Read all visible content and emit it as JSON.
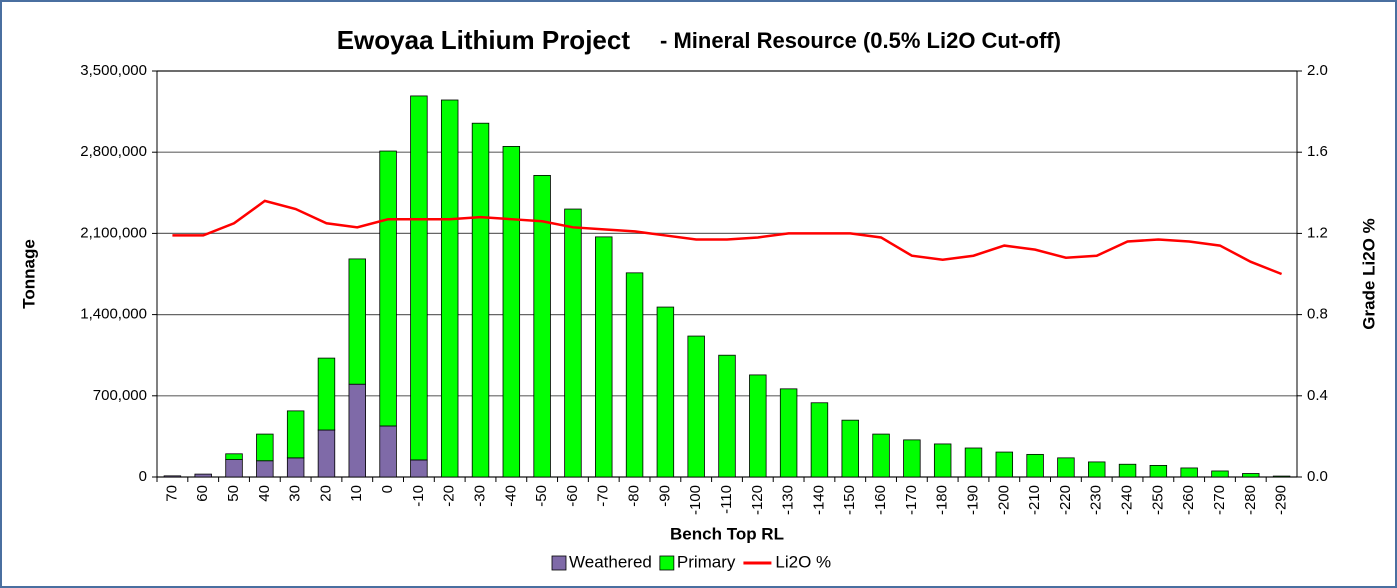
{
  "chart_data": {
    "type": "bar",
    "title": "Ewoyaa Lithium Project",
    "subtitle": "- Mineral Resource (0.5% Li2O Cut-off)",
    "x_label": "Bench Top RL",
    "y_label": "Tonnage",
    "y2_label": "Grade Li2O %",
    "stacked": true,
    "grid": true,
    "legend": "bottom",
    "categories": [
      "70",
      "60",
      "50",
      "40",
      "30",
      "20",
      "10",
      "0",
      "-10",
      "-20",
      "-30",
      "-40",
      "-50",
      "-60",
      "-70",
      "-80",
      "-90",
      "-100",
      "-110",
      "-120",
      "-130",
      "-140",
      "-150",
      "-160",
      "-170",
      "-180",
      "-190",
      "-200",
      "-210",
      "-220",
      "-230",
      "-240",
      "-250",
      "-260",
      "-270",
      "-280",
      "-290"
    ],
    "series": [
      {
        "name": "Weathered",
        "color": "#7f6aa8",
        "type": "bar",
        "values": [
          10000,
          25000,
          150000,
          140000,
          165000,
          405000,
          800000,
          440000,
          147000,
          0,
          0,
          0,
          0,
          0,
          0,
          0,
          0,
          0,
          0,
          0,
          0,
          0,
          0,
          0,
          0,
          0,
          0,
          0,
          0,
          0,
          0,
          0,
          0,
          0,
          0,
          0,
          0
        ]
      },
      {
        "name": "Primary",
        "color": "#00ff00",
        "type": "bar",
        "values": [
          0,
          0,
          50000,
          230000,
          405000,
          620000,
          1080000,
          2370000,
          3138000,
          3250000,
          3050000,
          2850000,
          2600000,
          2310000,
          2070000,
          1760000,
          1465000,
          1215000,
          1050000,
          880000,
          760000,
          640000,
          490000,
          370000,
          320000,
          285000,
          250000,
          215000,
          195000,
          165000,
          130000,
          110000,
          100000,
          78000,
          52000,
          30000,
          8000
        ]
      },
      {
        "name": "Li2O %",
        "color": "#ff0000",
        "type": "line",
        "axis": "y2",
        "values": [
          1.19,
          1.19,
          1.25,
          1.36,
          1.32,
          1.25,
          1.23,
          1.27,
          1.27,
          1.27,
          1.28,
          1.27,
          1.26,
          1.23,
          1.22,
          1.21,
          1.19,
          1.17,
          1.17,
          1.18,
          1.2,
          1.2,
          1.2,
          1.18,
          1.09,
          1.07,
          1.09,
          1.14,
          1.12,
          1.08,
          1.09,
          1.16,
          1.17,
          1.16,
          1.14,
          1.06,
          1.0
        ]
      }
    ],
    "ylim": [
      0,
      3500000
    ],
    "yticks": [
      0,
      {
        "value": 700000,
        "label": "700,000"
      },
      {
        "value": 1400000,
        "label": "1,400,000"
      },
      {
        "value": 2100000,
        "label": "2,100,000"
      },
      {
        "value": 2800000,
        "label": "2,800,000"
      },
      {
        "value": 3500000,
        "label": "3,500,000"
      }
    ],
    "y2lim": [
      0,
      2.0
    ],
    "y2ticks": [
      {
        "value": 0,
        "label": "0.0"
      },
      {
        "value": 0.4,
        "label": "0.4"
      },
      {
        "value": 0.8,
        "label": "0.8"
      },
      {
        "value": 1.2,
        "label": "1.2"
      },
      {
        "value": 1.6,
        "label": "1.6"
      },
      {
        "value": 2.0,
        "label": "2.0"
      }
    ]
  }
}
